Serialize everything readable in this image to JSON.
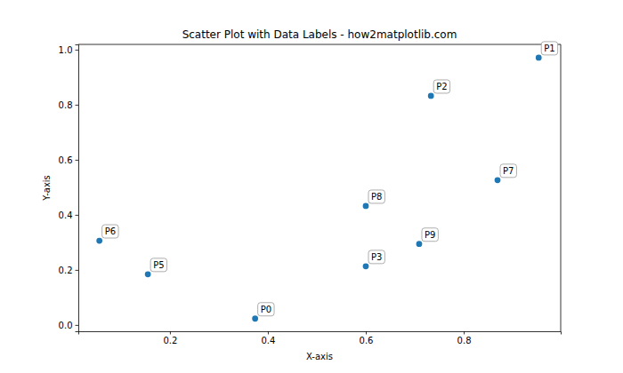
{
  "chart_data": {
    "type": "scatter",
    "title": "Scatter Plot with Data Labels - how2matplotlib.com",
    "x_label": "X-axis",
    "y_label": "Y-axis",
    "labels": [
      "P0",
      "P1",
      "P2",
      "P3",
      "P5",
      "P6",
      "P7",
      "P8",
      "P9"
    ],
    "x": [
      0.374,
      0.953,
      0.733,
      0.6,
      0.155,
      0.056,
      0.869,
      0.6,
      0.709
    ],
    "y": [
      0.023,
      0.971,
      0.832,
      0.213,
      0.184,
      0.306,
      0.526,
      0.432,
      0.294
    ],
    "color": "#1f77b4",
    "marker": "circle",
    "xlim": [
      0.013,
      0.998
    ],
    "xticks": [
      0.2,
      0.4,
      0.6,
      0.8
    ],
    "ylim": [
      -0.023,
      1.019
    ],
    "yticks": [
      {
        "value": 0,
        "label": "0.0"
      },
      0.2,
      0.4,
      0.6,
      0.8,
      {
        "value": 1,
        "label": "1.0"
      }
    ],
    "grid": false
  }
}
